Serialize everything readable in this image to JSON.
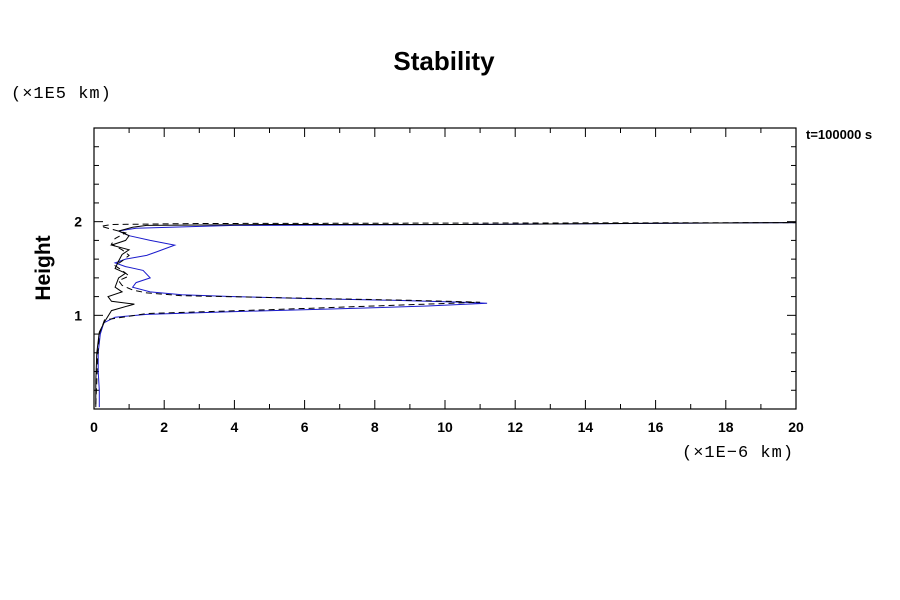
{
  "chart_data": {
    "type": "line",
    "title": "Stability",
    "ylabel": "Height",
    "y_unit": "(×1E5 km)",
    "x_unit": "(×1E−6 km)",
    "annotation": "t=100000 s",
    "xlim": [
      0,
      20
    ],
    "ylim": [
      0,
      3
    ],
    "x_ticks": [
      0,
      2,
      4,
      6,
      8,
      10,
      12,
      14,
      16,
      18,
      20
    ],
    "y_ticks": [
      1,
      2
    ],
    "series": [
      {
        "style": "solid",
        "color": "#1a1acc",
        "points": [
          [
            0.15,
            0.02
          ],
          [
            0.15,
            0.2
          ],
          [
            0.12,
            0.4
          ],
          [
            0.12,
            0.6
          ],
          [
            0.18,
            0.8
          ],
          [
            0.28,
            0.92
          ],
          [
            0.6,
            0.98
          ],
          [
            1.5,
            1.01
          ],
          [
            4,
            1.04
          ],
          [
            7,
            1.07
          ],
          [
            9.5,
            1.1
          ],
          [
            11.2,
            1.13
          ],
          [
            10.5,
            1.14
          ],
          [
            8.5,
            1.16
          ],
          [
            6,
            1.18
          ],
          [
            4,
            1.2
          ],
          [
            2.5,
            1.22
          ],
          [
            1.6,
            1.25
          ],
          [
            1.1,
            1.3
          ],
          [
            1.2,
            1.35
          ],
          [
            1.6,
            1.4
          ],
          [
            1.4,
            1.48
          ],
          [
            0.9,
            1.52
          ],
          [
            0.6,
            1.56
          ],
          [
            0.9,
            1.6
          ],
          [
            1.5,
            1.64
          ],
          [
            1.8,
            1.68
          ],
          [
            2.3,
            1.75
          ],
          [
            1.6,
            1.8
          ],
          [
            1.0,
            1.85
          ],
          [
            0.7,
            1.9
          ],
          [
            1.2,
            1.93
          ],
          [
            4,
            1.96
          ],
          [
            10.5,
            1.97
          ],
          [
            20,
            1.99
          ]
        ]
      },
      {
        "style": "solid",
        "color": "#000000",
        "points": [
          [
            0.05,
            0.02
          ],
          [
            0.05,
            0.3
          ],
          [
            0.08,
            0.6
          ],
          [
            0.15,
            0.82
          ],
          [
            0.3,
            0.93
          ],
          [
            0.5,
            1.05
          ],
          [
            1.15,
            1.12
          ],
          [
            0.5,
            1.15
          ],
          [
            0.4,
            1.2
          ],
          [
            0.8,
            1.25
          ],
          [
            0.6,
            1.3
          ],
          [
            0.7,
            1.4
          ],
          [
            0.9,
            1.45
          ],
          [
            0.6,
            1.5
          ],
          [
            0.7,
            1.58
          ],
          [
            0.8,
            1.65
          ],
          [
            1.0,
            1.7
          ],
          [
            0.5,
            1.75
          ],
          [
            0.9,
            1.8
          ],
          [
            1.0,
            1.85
          ],
          [
            0.7,
            1.9
          ],
          [
            1.1,
            1.94
          ],
          [
            1.5,
            1.96
          ],
          [
            5,
            1.97
          ],
          [
            10.5,
            1.97
          ],
          [
            15,
            1.98
          ],
          [
            20,
            1.99
          ]
        ]
      },
      {
        "style": "dashed",
        "color": "#000000",
        "points": [
          [
            0.05,
            0.05
          ],
          [
            0.08,
            0.3
          ],
          [
            0.1,
            0.55
          ],
          [
            0.15,
            0.8
          ],
          [
            0.3,
            0.95
          ],
          [
            1.5,
            1.02
          ],
          [
            5,
            1.06
          ],
          [
            9.5,
            1.12
          ],
          [
            11,
            1.14
          ],
          [
            9,
            1.16
          ],
          [
            5,
            1.19
          ],
          [
            2.5,
            1.21
          ],
          [
            1.5,
            1.24
          ],
          [
            1.1,
            1.27
          ],
          [
            0.8,
            1.32
          ],
          [
            0.7,
            1.37
          ],
          [
            1.0,
            1.42
          ],
          [
            0.8,
            1.48
          ],
          [
            0.6,
            1.53
          ],
          [
            0.8,
            1.58
          ],
          [
            1.0,
            1.64
          ],
          [
            0.8,
            1.7
          ],
          [
            0.5,
            1.76
          ],
          [
            0.6,
            1.82
          ],
          [
            0.9,
            1.88
          ],
          [
            0.5,
            1.92
          ],
          [
            0.2,
            1.95
          ],
          [
            0.5,
            1.97
          ],
          [
            3,
            1.98
          ],
          [
            20,
            1.99
          ]
        ]
      }
    ]
  }
}
